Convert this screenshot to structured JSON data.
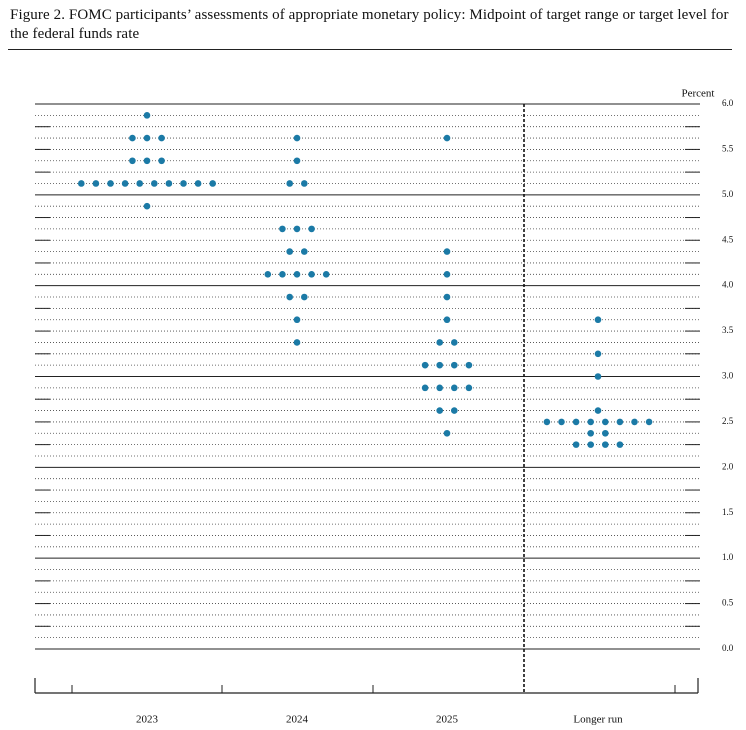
{
  "chart_data": {
    "type": "dot",
    "title": "Figure 2.  FOMC participants’ assessments of appropriate monetary policy: Midpoint of target range or target level for the federal funds rate",
    "y_label": "Percent",
    "color": "#1b7aa6",
    "categories": [
      "2023",
      "2024",
      "2025",
      "Longer run"
    ],
    "values": [
      [
        5.875,
        5.625,
        5.625,
        5.625,
        5.375,
        5.375,
        5.375,
        5.125,
        5.125,
        5.125,
        5.125,
        5.125,
        5.125,
        5.125,
        5.125,
        5.125,
        5.125,
        4.875
      ],
      [
        5.625,
        5.375,
        5.125,
        5.125,
        4.625,
        4.625,
        4.625,
        4.375,
        4.375,
        4.125,
        4.125,
        4.125,
        4.125,
        4.125,
        3.875,
        3.875,
        3.625,
        3.375
      ],
      [
        5.625,
        4.375,
        4.125,
        3.875,
        3.625,
        3.375,
        3.375,
        3.125,
        3.125,
        3.125,
        3.125,
        2.875,
        2.875,
        2.875,
        2.875,
        2.625,
        2.625,
        2.375
      ],
      [
        3.625,
        3.25,
        3.0,
        2.625,
        2.5,
        2.5,
        2.5,
        2.5,
        2.5,
        2.5,
        2.5,
        2.5,
        2.375,
        2.375,
        2.25,
        2.25,
        2.25,
        2.25
      ]
    ],
    "ylim": [
      0,
      6
    ],
    "yticks": [
      {
        "value": 0,
        "label": "0.0"
      },
      {
        "value": 0.5,
        "label": "0.5"
      },
      {
        "value": 1,
        "label": "1.0"
      },
      {
        "value": 1.5,
        "label": "1.5"
      },
      {
        "value": 2,
        "label": "2.0"
      },
      {
        "value": 2.5,
        "label": "2.5"
      },
      {
        "value": 3,
        "label": "3.0"
      },
      {
        "value": 3.5,
        "label": "3.5"
      },
      {
        "value": 4,
        "label": "4.0"
      },
      {
        "value": 4.5,
        "label": "4.5"
      },
      {
        "value": 5,
        "label": "5.0"
      },
      {
        "value": 5.5,
        "label": "5.5"
      },
      {
        "value": 6,
        "label": "6.0"
      }
    ],
    "grid": true
  }
}
